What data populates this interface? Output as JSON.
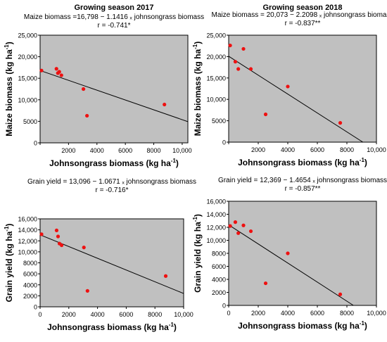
{
  "chart_data": [
    {
      "type": "scatter",
      "title": "Growing season 2017",
      "equation": "Maize biomass =16,798 − 1.1416 ₓ johnsongrass biomass",
      "r_text": "r = -0.741*",
      "xlabel": "Johnsongrass biomass (kg ha",
      "ylabel": "Maize biomass (kg ha",
      "unit_sup": "-1",
      "unit_close": ")",
      "xlim": [
        0,
        10400
      ],
      "ylim": [
        0,
        25000
      ],
      "x_ticks": [
        0,
        2000,
        4000,
        6000,
        8000,
        10000
      ],
      "x_tick_labels": [
        "0",
        "2000",
        "4000",
        "6000",
        "8000",
        "10,000"
      ],
      "x_tick_labels_shown": [
        false,
        true,
        true,
        true,
        true,
        true
      ],
      "y_ticks": [
        0,
        5000,
        10000,
        15000,
        20000,
        25000
      ],
      "y_tick_labels": [
        "0",
        "5000",
        "10,000",
        "15,000",
        "20,000",
        "25,000"
      ],
      "x": [
        100,
        1150,
        1250,
        1350,
        1500,
        3050,
        3300,
        8750
      ],
      "y": [
        16800,
        17200,
        16200,
        16500,
        15700,
        12500,
        6300,
        8900
      ],
      "fit": {
        "intercept": 16798,
        "slope": -1.1416
      },
      "grid": false,
      "plot_bg": "#c0c0c0",
      "point_color": "#ee1111"
    },
    {
      "type": "scatter",
      "title": "Growing season 2018",
      "equation": "Maize biomass = 20,073 − 2.2098 ₓ johnsongrass biomass",
      "r_text": "r = -0.837**",
      "xlabel": "Johnsongrass biomass (kg ha",
      "ylabel": "Maize biomass (kg ha",
      "unit_sup": "-1",
      "unit_close": ")",
      "xlim": [
        0,
        10000
      ],
      "ylim": [
        0,
        25000
      ],
      "x_ticks": [
        0,
        2000,
        4000,
        6000,
        8000,
        10000
      ],
      "x_tick_labels": [
        "0",
        "2000",
        "4000",
        "6000",
        "8000",
        "10,000"
      ],
      "x_tick_labels_shown": [
        false,
        true,
        true,
        true,
        true,
        true
      ],
      "y_ticks": [
        0,
        5000,
        10000,
        15000,
        20000,
        25000
      ],
      "y_tick_labels": [
        "0",
        "5000",
        "10,000",
        "15,000",
        "20,000",
        "25,000"
      ],
      "x": [
        100,
        450,
        650,
        1000,
        1500,
        2500,
        4000,
        7550
      ],
      "y": [
        22600,
        18800,
        17100,
        21800,
        17100,
        6500,
        13000,
        4500
      ],
      "fit": {
        "intercept": 20073,
        "slope": -2.2098
      },
      "grid": false,
      "plot_bg": "#c0c0c0",
      "point_color": "#ee1111"
    },
    {
      "type": "scatter",
      "title": "",
      "equation": "Grain yield = 13,096 − 1.0671 ₓ johnsongrass biomass",
      "r_text": "r = -0.716*",
      "xlabel": "Johnsongrass biomass (kg ha",
      "ylabel": "Grain yield (kg ha",
      "unit_sup": "-1",
      "unit_close": ")",
      "xlim": [
        0,
        10000
      ],
      "ylim": [
        0,
        16000
      ],
      "x_ticks": [
        0,
        2000,
        4000,
        6000,
        8000,
        10000
      ],
      "x_tick_labels": [
        "0",
        "2000",
        "4000",
        "6000",
        "8000",
        "10,000"
      ],
      "x_tick_labels_shown": [
        true,
        true,
        true,
        true,
        true,
        true
      ],
      "y_ticks": [
        0,
        2000,
        4000,
        6000,
        8000,
        10000,
        12000,
        14000,
        16000
      ],
      "y_tick_labels": [
        "0",
        "2000",
        "4000",
        "6000",
        "8000",
        "10,000",
        "12,000",
        "14,000",
        "16,000"
      ],
      "x": [
        100,
        1150,
        1250,
        1350,
        1500,
        3050,
        3300,
        8750
      ],
      "y": [
        13200,
        13900,
        12800,
        11500,
        11200,
        10800,
        2900,
        5600
      ],
      "fit": {
        "intercept": 13096,
        "slope": -1.0671
      },
      "grid": false,
      "plot_bg": "#c0c0c0",
      "point_color": "#ee1111"
    },
    {
      "type": "scatter",
      "title": "",
      "equation": "Grain yield = 12,369 − 1.4654 ₓ johnsongrass biomass",
      "r_text": "r = -0.857**",
      "xlabel": "Johnsongrass biomass (kg ha",
      "ylabel": "Grain yield (kg ha",
      "unit_sup": "-1",
      "unit_close": ")",
      "xlim": [
        0,
        10000
      ],
      "ylim": [
        0,
        16000
      ],
      "x_ticks": [
        0,
        2000,
        4000,
        6000,
        8000,
        10000
      ],
      "x_tick_labels": [
        "0",
        "2000",
        "4000",
        "6000",
        "8000",
        "10,000"
      ],
      "x_tick_labels_shown": [
        true,
        true,
        true,
        true,
        true,
        true
      ],
      "y_ticks": [
        0,
        2000,
        4000,
        6000,
        8000,
        10000,
        12000,
        14000,
        16000
      ],
      "y_tick_labels": [
        "0",
        "2000",
        "4000",
        "6000",
        "8000",
        "10,000",
        "12,000",
        "14,000",
        "16,000"
      ],
      "x": [
        100,
        450,
        650,
        1000,
        1500,
        2500,
        4000,
        7550
      ],
      "y": [
        12200,
        12800,
        11100,
        12300,
        11400,
        3400,
        8000,
        1700
      ],
      "fit": {
        "intercept": 12369,
        "slope": -1.4654
      },
      "grid": false,
      "plot_bg": "#c0c0c0",
      "point_color": "#ee1111"
    }
  ]
}
